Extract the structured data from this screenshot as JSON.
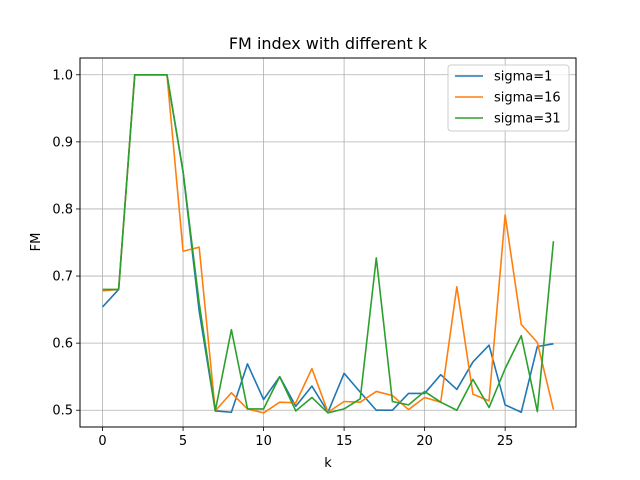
{
  "chart_data": {
    "type": "line",
    "title": "FM index with different k",
    "xlabel": "k",
    "ylabel": "FM",
    "xlim": [
      -1.4,
      29.4
    ],
    "ylim": [
      0.475,
      1.025
    ],
    "xticks": [
      0,
      5,
      10,
      15,
      20,
      25
    ],
    "yticks": [
      0.5,
      0.6,
      0.7,
      0.8,
      0.9,
      1.0
    ],
    "ytick_labels": [
      "0.5",
      "0.6",
      "0.7",
      "0.8",
      "0.9",
      "1.0"
    ],
    "grid": true,
    "legend_position": "top-right",
    "x": [
      0,
      1,
      2,
      3,
      4,
      5,
      6,
      7,
      8,
      9,
      10,
      11,
      12,
      13,
      14,
      15,
      16,
      17,
      18,
      19,
      20,
      21,
      22,
      23,
      24,
      25,
      26,
      27,
      28
    ],
    "series": [
      {
        "name": "sigma=1",
        "color": "#1f77b4",
        "values": [
          0.654,
          0.68,
          1.0,
          1.0,
          1.0,
          0.855,
          0.648,
          0.499,
          0.497,
          0.569,
          0.516,
          0.55,
          0.506,
          0.536,
          0.497,
          0.555,
          0.527,
          0.5,
          0.5,
          0.525,
          0.525,
          0.553,
          0.531,
          0.572,
          0.597,
          0.508,
          0.497,
          0.595,
          0.599
        ]
      },
      {
        "name": "sigma=16",
        "color": "#ff7f0e",
        "values": [
          0.678,
          0.68,
          1.0,
          1.0,
          1.0,
          0.737,
          0.743,
          0.499,
          0.526,
          0.502,
          0.496,
          0.512,
          0.511,
          0.562,
          0.497,
          0.513,
          0.512,
          0.528,
          0.522,
          0.501,
          0.519,
          0.512,
          0.684,
          0.524,
          0.514,
          0.791,
          0.628,
          0.601,
          0.501
        ]
      },
      {
        "name": "sigma=31",
        "color": "#2ca02c",
        "values": [
          0.68,
          0.68,
          1.0,
          1.0,
          1.0,
          0.856,
          0.66,
          0.499,
          0.62,
          0.502,
          0.502,
          0.55,
          0.499,
          0.519,
          0.496,
          0.502,
          0.517,
          0.727,
          0.513,
          0.508,
          0.528,
          0.512,
          0.5,
          0.546,
          0.504,
          0.562,
          0.611,
          0.498,
          0.752
        ]
      }
    ]
  }
}
